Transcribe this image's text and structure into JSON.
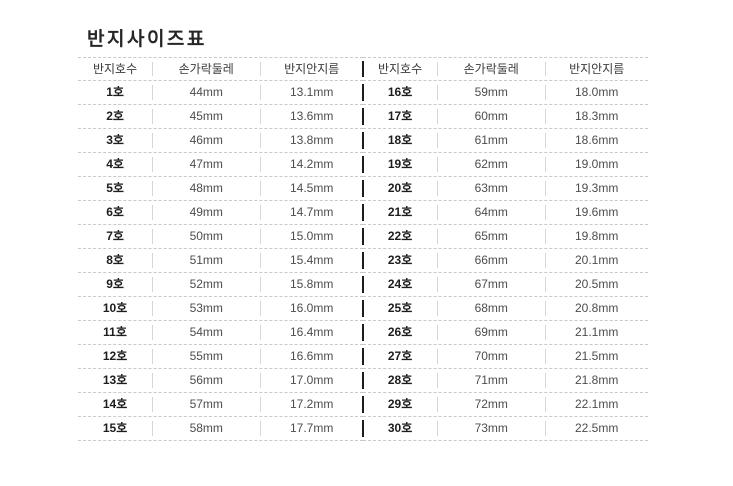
{
  "title": "반지사이즈표",
  "table": {
    "headers": [
      "반지호수",
      "손가락둘레",
      "반지안지름"
    ],
    "column_names": [
      "ring-number",
      "finger-circumference",
      "ring-inner-diameter"
    ]
  },
  "chart_data": {
    "type": "table",
    "title": "반지사이즈표",
    "columns": [
      "반지호수",
      "손가락둘레",
      "반지안지름"
    ],
    "layout": "two side-by-side halves: rows 1-15 left, rows 16-30 right",
    "rows": [
      [
        "1호",
        "44mm",
        "13.1mm"
      ],
      [
        "2호",
        "45mm",
        "13.6mm"
      ],
      [
        "3호",
        "46mm",
        "13.8mm"
      ],
      [
        "4호",
        "47mm",
        "14.2mm"
      ],
      [
        "5호",
        "48mm",
        "14.5mm"
      ],
      [
        "6호",
        "49mm",
        "14.7mm"
      ],
      [
        "7호",
        "50mm",
        "15.0mm"
      ],
      [
        "8호",
        "51mm",
        "15.4mm"
      ],
      [
        "9호",
        "52mm",
        "15.8mm"
      ],
      [
        "10호",
        "53mm",
        "16.0mm"
      ],
      [
        "11호",
        "54mm",
        "16.4mm"
      ],
      [
        "12호",
        "55mm",
        "16.6mm"
      ],
      [
        "13호",
        "56mm",
        "17.0mm"
      ],
      [
        "14호",
        "57mm",
        "17.2mm"
      ],
      [
        "15호",
        "58mm",
        "17.7mm"
      ],
      [
        "16호",
        "59mm",
        "18.0mm"
      ],
      [
        "17호",
        "60mm",
        "18.3mm"
      ],
      [
        "18호",
        "61mm",
        "18.6mm"
      ],
      [
        "19호",
        "62mm",
        "19.0mm"
      ],
      [
        "20호",
        "63mm",
        "19.3mm"
      ],
      [
        "21호",
        "64mm",
        "19.6mm"
      ],
      [
        "22호",
        "65mm",
        "19.8mm"
      ],
      [
        "23호",
        "66mm",
        "20.1mm"
      ],
      [
        "24호",
        "67mm",
        "20.5mm"
      ],
      [
        "25호",
        "68mm",
        "20.8mm"
      ],
      [
        "26호",
        "69mm",
        "21.1mm"
      ],
      [
        "27호",
        "70mm",
        "21.5mm"
      ],
      [
        "28호",
        "71mm",
        "21.8mm"
      ],
      [
        "29호",
        "72mm",
        "22.1mm"
      ],
      [
        "30호",
        "73mm",
        "22.5mm"
      ]
    ],
    "colors": {
      "background": "#ffffff",
      "title_text": "#262626",
      "header_text": "#3a3a3a",
      "ring_number_text": "#1d1d1d",
      "value_text": "#4d4d4d",
      "dashed_line": "#c9c9c9",
      "column_divider": "#d6d6d6",
      "center_divider": "#1c1c1c"
    }
  }
}
